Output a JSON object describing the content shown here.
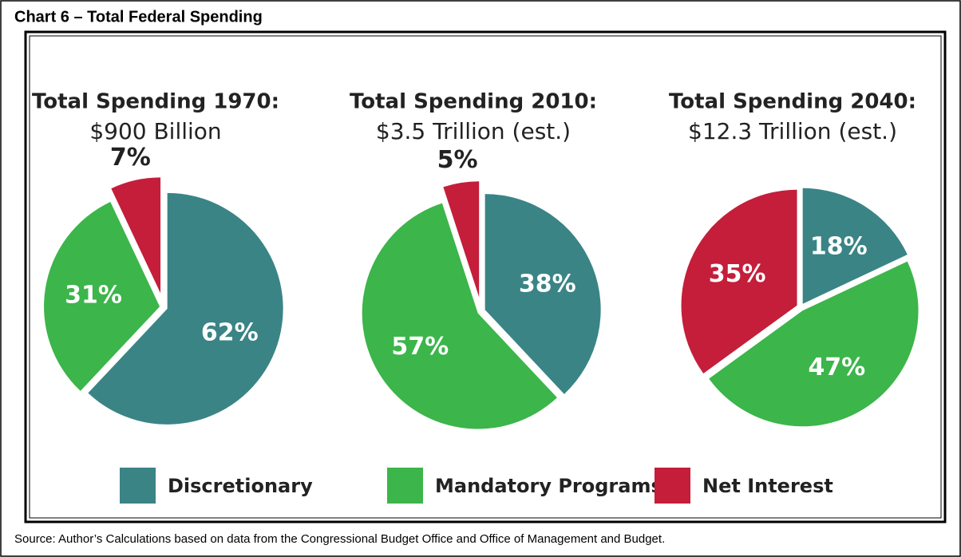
{
  "title": "Chart 6 – Total Federal Spending",
  "source": "Source: Author’s Calculations based on data from the Congressional Budget Office and Office of Management and Budget.",
  "legend": {
    "labels": [
      "Discretionary",
      "Mandatory Programs",
      "Net Interest"
    ],
    "colors": [
      "#3a8486",
      "#3cb54a",
      "#c41e3a"
    ]
  },
  "chart_data": [
    {
      "type": "pie",
      "title": "Total Spending 1970:",
      "subtitle": "$900 Billion",
      "values": [
        62,
        31,
        7
      ],
      "value_labels": [
        "62%",
        "31%",
        "7%"
      ]
    },
    {
      "type": "pie",
      "title": "Total Spending 2010:",
      "subtitle": "$3.5 Trillion (est.)",
      "values": [
        38,
        57,
        5
      ],
      "value_labels": [
        "38%",
        "57%",
        "5%"
      ]
    },
    {
      "type": "pie",
      "title": "Total Spending 2040:",
      "subtitle": "$12.3 Trillion (est.)",
      "values": [
        18,
        47,
        35
      ],
      "value_labels": [
        "18%",
        "47%",
        "35%"
      ]
    }
  ]
}
